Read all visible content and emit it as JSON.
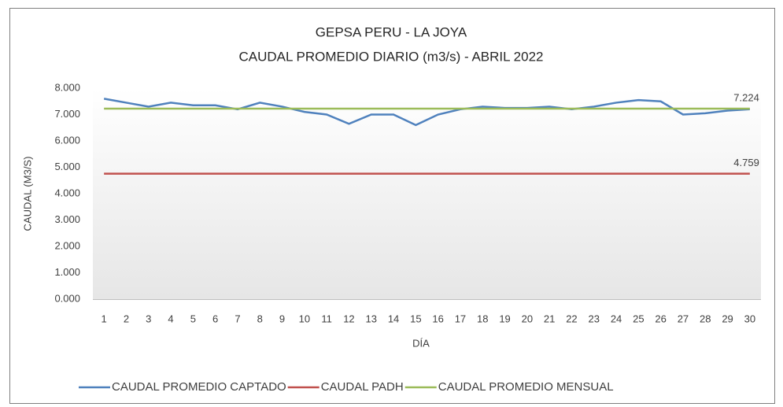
{
  "chart_data": {
    "type": "line",
    "title": "GEPSA PERU - LA JOYA",
    "subtitle": "CAUDAL PROMEDIO DIARIO (m3/s) - ABRIL 2022",
    "x_label": "DÍA",
    "y_label": "CAUDAL (M3/S)",
    "categories": [
      "1",
      "2",
      "3",
      "4",
      "5",
      "6",
      "7",
      "8",
      "9",
      "10",
      "11",
      "12",
      "13",
      "14",
      "15",
      "16",
      "17",
      "18",
      "19",
      "20",
      "21",
      "22",
      "23",
      "24",
      "25",
      "26",
      "27",
      "28",
      "29",
      "30"
    ],
    "series": [
      {
        "name": "CAUDAL PROMEDIO CAPTADO",
        "color": "#4f81bd",
        "values": [
          7.6,
          7.45,
          7.3,
          7.45,
          7.35,
          7.35,
          7.2,
          7.45,
          7.3,
          7.1,
          7.0,
          6.65,
          7.0,
          7.0,
          6.6,
          7.0,
          7.2,
          7.3,
          7.25,
          7.25,
          7.3,
          7.2,
          7.3,
          7.45,
          7.55,
          7.5,
          7.0,
          7.05,
          7.15,
          7.2
        ]
      },
      {
        "name": "CAUDAL PADH",
        "color": "#c0504d",
        "values": [
          4.759,
          4.759,
          4.759,
          4.759,
          4.759,
          4.759,
          4.759,
          4.759,
          4.759,
          4.759,
          4.759,
          4.759,
          4.759,
          4.759,
          4.759,
          4.759,
          4.759,
          4.759,
          4.759,
          4.759,
          4.759,
          4.759,
          4.759,
          4.759,
          4.759,
          4.759,
          4.759,
          4.759,
          4.759,
          4.759
        ],
        "value_labels": [
          null,
          null,
          null,
          null,
          null,
          null,
          null,
          null,
          null,
          null,
          null,
          null,
          null,
          null,
          null,
          null,
          null,
          null,
          null,
          null,
          null,
          null,
          null,
          null,
          null,
          null,
          null,
          null,
          null,
          "4.759"
        ]
      },
      {
        "name": "CAUDAL PROMEDIO MENSUAL",
        "color": "#9bbb59",
        "values": [
          7.224,
          7.224,
          7.224,
          7.224,
          7.224,
          7.224,
          7.224,
          7.224,
          7.224,
          7.224,
          7.224,
          7.224,
          7.224,
          7.224,
          7.224,
          7.224,
          7.224,
          7.224,
          7.224,
          7.224,
          7.224,
          7.224,
          7.224,
          7.224,
          7.224,
          7.224,
          7.224,
          7.224,
          7.224,
          7.224
        ],
        "value_labels": [
          null,
          null,
          null,
          null,
          null,
          null,
          null,
          null,
          null,
          null,
          null,
          null,
          null,
          null,
          null,
          null,
          null,
          null,
          null,
          null,
          null,
          null,
          null,
          null,
          null,
          null,
          null,
          null,
          null,
          "7.224"
        ]
      }
    ],
    "ylim": [
      0,
      8
    ],
    "yticks": [
      {
        "value": 0,
        "label": "0.000"
      },
      {
        "value": 1,
        "label": "1.000"
      },
      {
        "value": 2,
        "label": "2.000"
      },
      {
        "value": 3,
        "label": "3.000"
      },
      {
        "value": 4,
        "label": "4.000"
      },
      {
        "value": 5,
        "label": "5.000"
      },
      {
        "value": 6,
        "label": "6.000"
      },
      {
        "value": 7,
        "label": "7.000"
      },
      {
        "value": 8,
        "label": "8.000"
      }
    ],
    "legend": "bottom"
  }
}
